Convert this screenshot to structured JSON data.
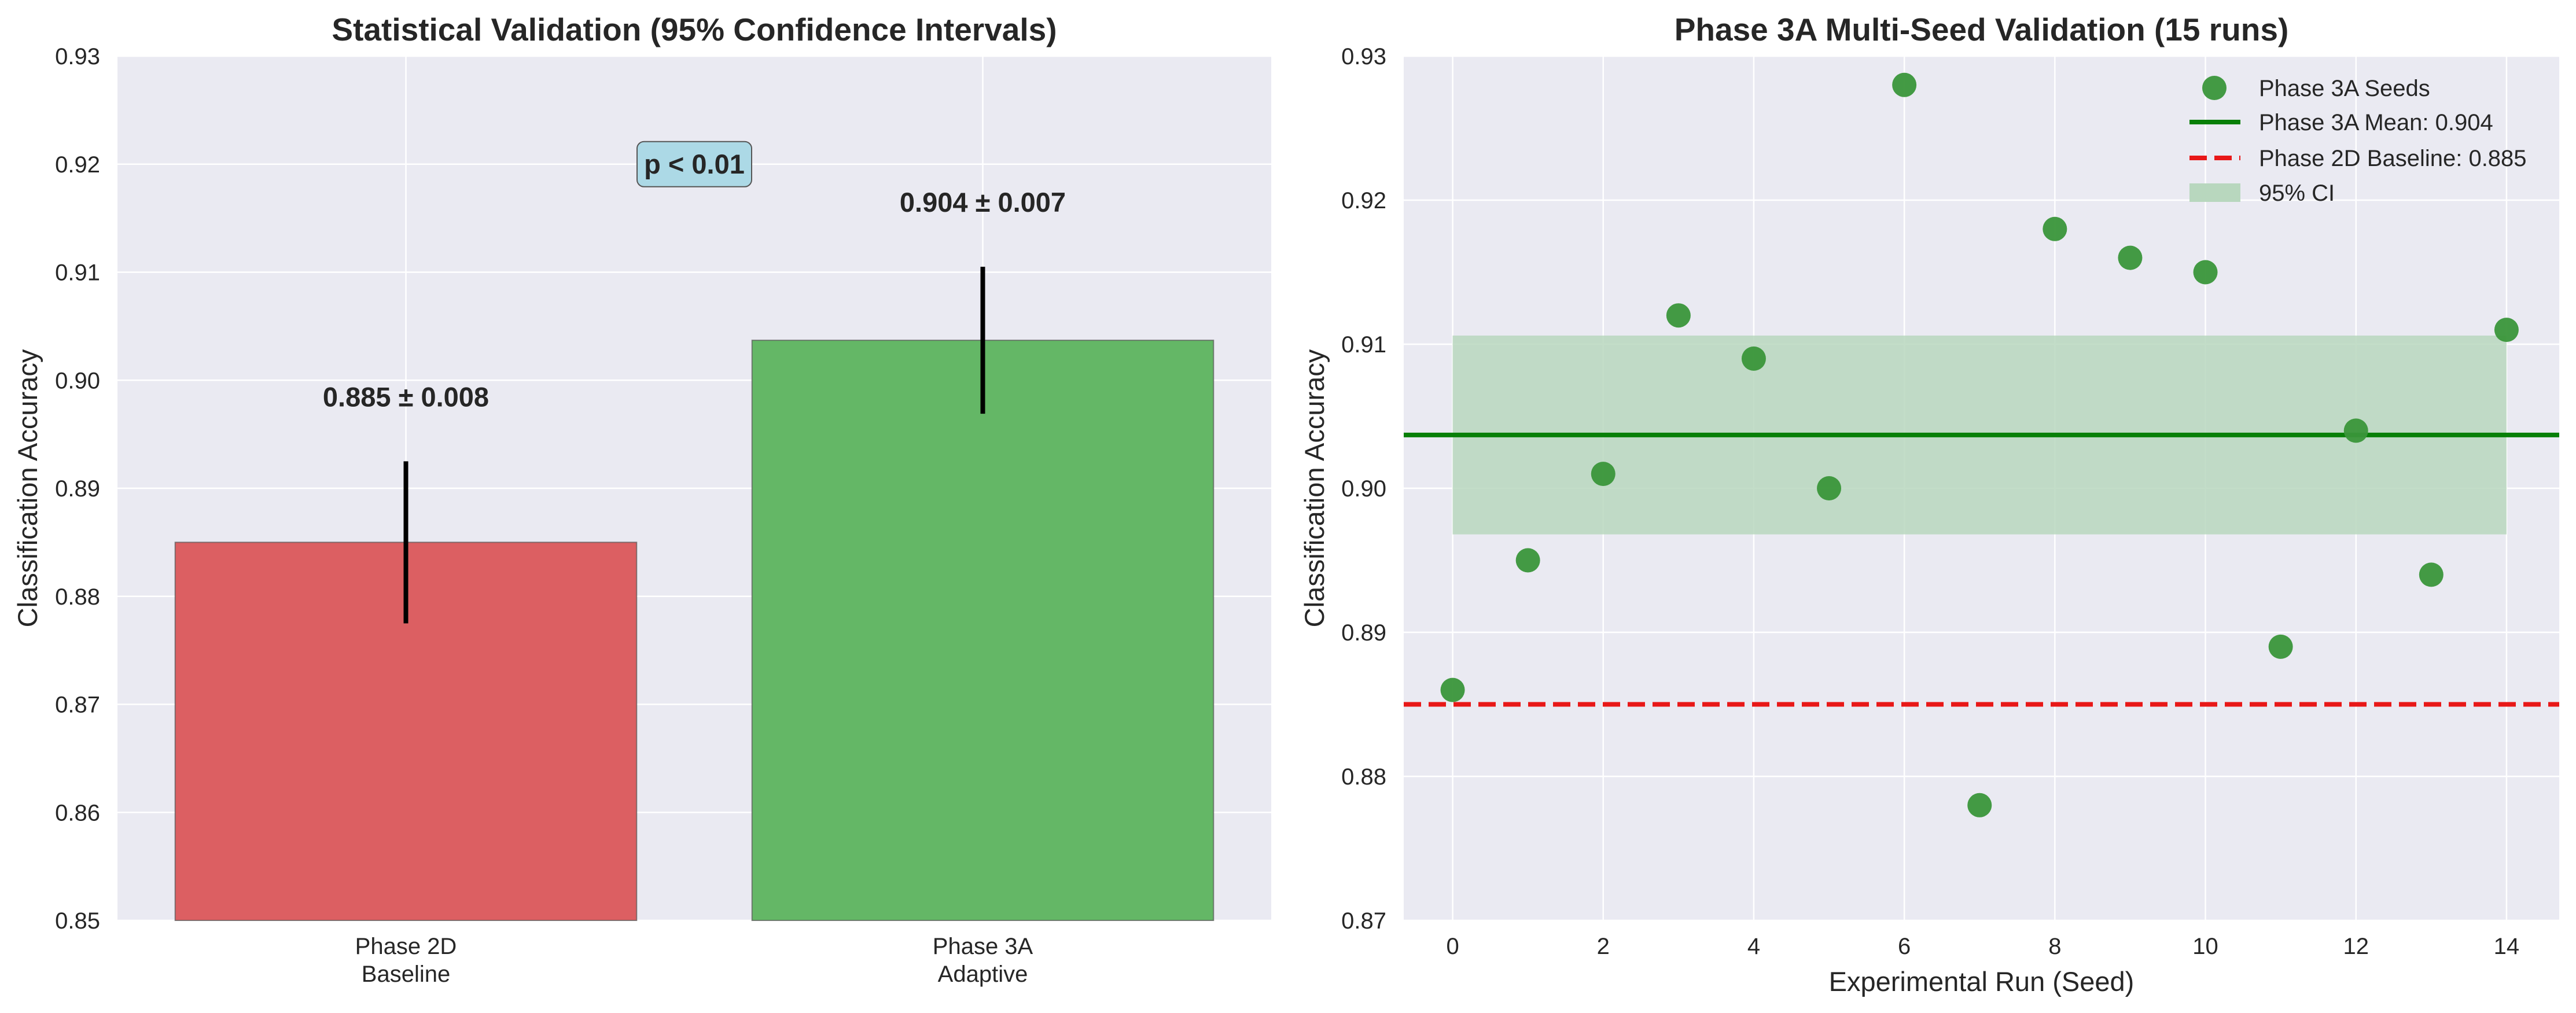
{
  "colors": {
    "plot_bg": "#eaeaf2",
    "grid": "#ffffff",
    "bar_baseline": "#dc5f62",
    "bar_adaptive": "#64b766",
    "scatter": "#3a963a",
    "mean_line": "#087f08",
    "baseline_line": "#e81818",
    "ci_band": "#b8d7be",
    "pvalue_box": "#acd9e6"
  },
  "chart_data": [
    {
      "type": "bar",
      "title": "Statistical Validation (95% Confidence Intervals)",
      "xlabel": "",
      "ylabel": "Classification Accuracy",
      "ylim": [
        0.85,
        0.93
      ],
      "yticks": [
        "0.85",
        "0.86",
        "0.87",
        "0.88",
        "0.89",
        "0.90",
        "0.91",
        "0.92",
        "0.93"
      ],
      "categories": [
        {
          "line1": "Phase 2D",
          "line2": "Baseline"
        },
        {
          "line1": "Phase 3A",
          "line2": "Adaptive"
        }
      ],
      "values": [
        0.885,
        0.9037
      ],
      "errors": [
        0.0075,
        0.0068
      ],
      "value_labels": [
        "0.885 ± 0.008",
        "0.904 ± 0.007"
      ],
      "annotation": {
        "text": "p < 0.01",
        "x": 0.5,
        "y": 0.92
      },
      "grid": true
    },
    {
      "type": "scatter",
      "title": "Phase 3A Multi-Seed Validation (15 runs)",
      "xlabel": "Experimental Run (Seed)",
      "ylabel": "Classification Accuracy",
      "xlim": [
        -0.65,
        14.7
      ],
      "ylim": [
        0.87,
        0.93
      ],
      "xticks": [
        "0",
        "2",
        "4",
        "6",
        "8",
        "10",
        "12",
        "14"
      ],
      "yticks": [
        "0.87",
        "0.88",
        "0.89",
        "0.90",
        "0.91",
        "0.92",
        "0.93"
      ],
      "x": [
        0,
        1,
        2,
        3,
        4,
        5,
        6,
        7,
        8,
        9,
        10,
        11,
        12,
        13,
        14
      ],
      "y": [
        0.886,
        0.895,
        0.901,
        0.912,
        0.909,
        0.9,
        0.928,
        0.878,
        0.918,
        0.916,
        0.915,
        0.889,
        0.904,
        0.894,
        0.911
      ],
      "mean": 0.9037,
      "baseline": 0.885,
      "ci": [
        0.8968,
        0.9106
      ],
      "legend": {
        "position": "top-right",
        "entries": [
          "Phase 3A Seeds",
          "Phase 3A Mean: 0.904",
          "Phase 2D Baseline: 0.885",
          "95% CI"
        ]
      },
      "grid": true
    }
  ]
}
